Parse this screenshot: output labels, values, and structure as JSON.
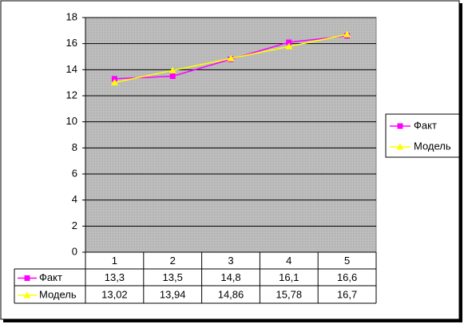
{
  "chart_data": {
    "type": "line",
    "categories": [
      "1",
      "2",
      "3",
      "4",
      "5"
    ],
    "series": [
      {
        "name": "Факт",
        "color": "#ff00ff",
        "marker": "square",
        "values": [
          13.3,
          13.5,
          14.8,
          16.1,
          16.6
        ],
        "value_labels": [
          "13,3",
          "13,5",
          "14,8",
          "16,1",
          "16,6"
        ]
      },
      {
        "name": "Модель",
        "color": "#ffff00",
        "marker": "triangle",
        "values": [
          13.02,
          13.94,
          14.86,
          15.78,
          16.7
        ],
        "value_labels": [
          "13,02",
          "13,94",
          "14,86",
          "15,78",
          "16,7"
        ]
      }
    ],
    "ylim": [
      0,
      18
    ],
    "yticks": [
      0,
      2,
      4,
      6,
      8,
      10,
      12,
      14,
      16,
      18
    ],
    "grid": true,
    "legend": "right",
    "data_table": true
  }
}
